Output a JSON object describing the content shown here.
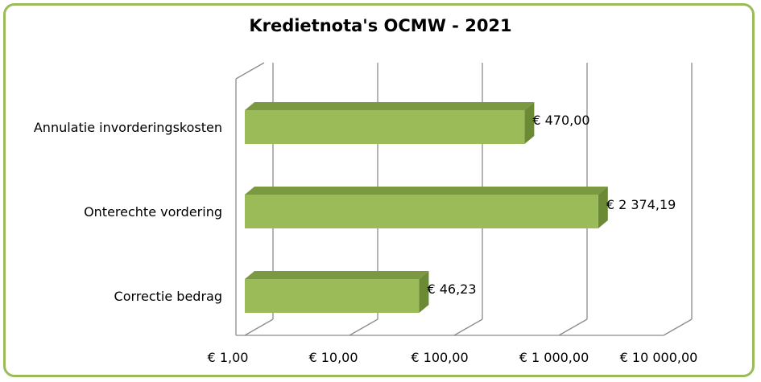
{
  "chart_data": {
    "type": "bar",
    "orientation": "horizontal",
    "title": "Kredietnota's OCMW - 2021",
    "x_scale": "log",
    "xlim": [
      1,
      10000
    ],
    "x_ticks": [
      1,
      10,
      100,
      1000,
      10000
    ],
    "x_tick_labels": [
      "€  1,00",
      "€  10,00",
      "€  100,00",
      "€ 1 000,00",
      "€ 10 000,00"
    ],
    "categories": [
      "Annulatie invorderingskosten",
      "Onterechte vordering",
      "Correctie bedrag"
    ],
    "values": [
      470.0,
      2374.19,
      46.23
    ],
    "data_labels": [
      "€  470,00",
      "€ 2 374,19",
      "€  46,23"
    ],
    "grid": true,
    "legend": "none"
  },
  "colors": {
    "bar_front": "#9bbb59",
    "bar_top": "#7a9940",
    "bar_side": "#6b8a36",
    "border": "#9bbb59",
    "grid": "#8c8c8c"
  }
}
